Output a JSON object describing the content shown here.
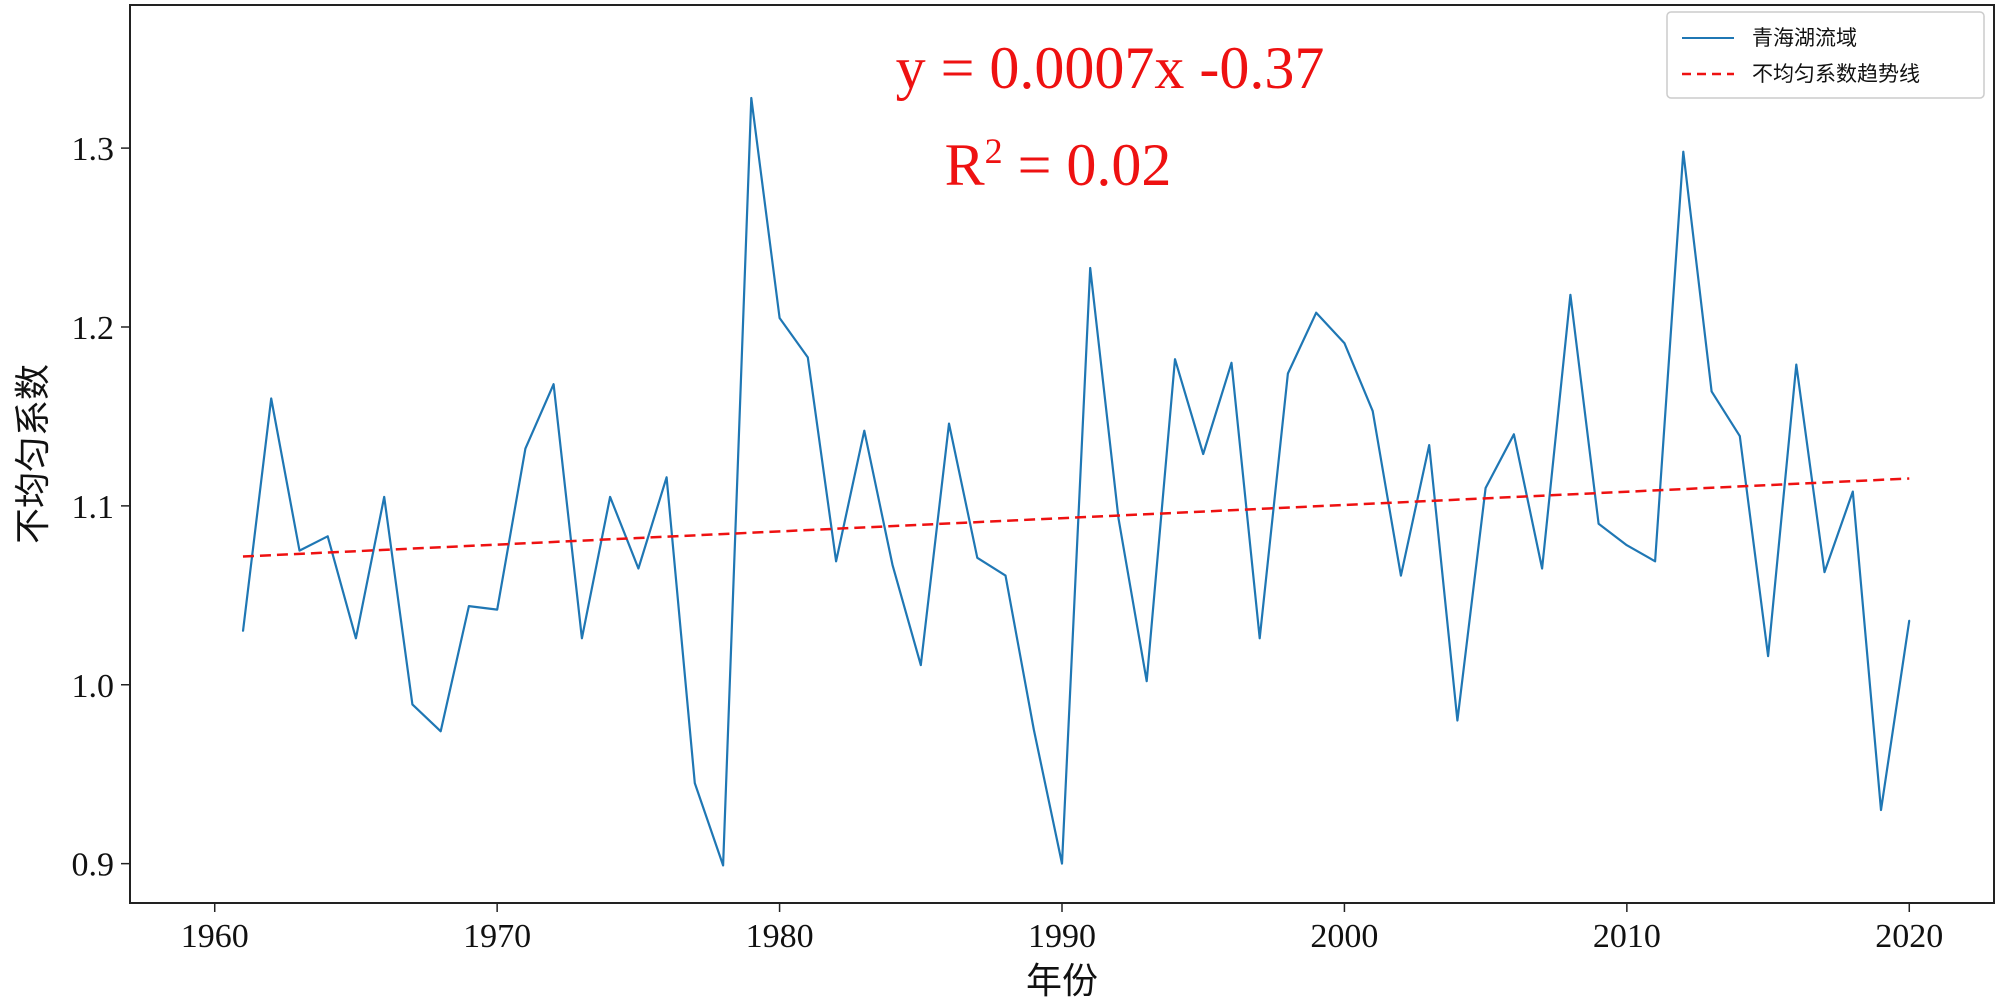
{
  "colors": {
    "series": "#1f77b4",
    "trend": "#ee1111",
    "annotation": "#ee1111",
    "axis": "#222222"
  },
  "chart_data": {
    "type": "line",
    "xlabel": "年份",
    "ylabel": "不均匀系数",
    "xlim": [
      1957.0,
      2023.0
    ],
    "ylim": [
      0.878,
      1.38
    ],
    "xticks": [
      1960,
      1970,
      1980,
      1990,
      2000,
      2010,
      2020
    ],
    "yticks": [
      0.9,
      1.0,
      1.1,
      1.2,
      1.3
    ],
    "ytick_labels": [
      "0.9",
      "1.0",
      "1.1",
      "1.2",
      "1.3"
    ],
    "grid": false,
    "legend_position": "top-right",
    "annotations": {
      "equation": "y = 0.0007x -0.37",
      "r2_prefix": "R",
      "r2_sup": "2",
      "r2_rest": " = 0.02"
    },
    "series": [
      {
        "name": "青海湖流域",
        "style": "solid",
        "x": [
          1961,
          1962,
          1963,
          1964,
          1965,
          1966,
          1967,
          1968,
          1969,
          1970,
          1971,
          1972,
          1973,
          1974,
          1975,
          1976,
          1977,
          1978,
          1979,
          1980,
          1981,
          1982,
          1983,
          1984,
          1985,
          1986,
          1987,
          1988,
          1989,
          1990,
          1991,
          1992,
          1993,
          1994,
          1995,
          1996,
          1997,
          1998,
          1999,
          2000,
          2001,
          2002,
          2003,
          2004,
          2005,
          2006,
          2007,
          2008,
          2009,
          2010,
          2011,
          2012,
          2013,
          2014,
          2015,
          2016,
          2017,
          2018,
          2019,
          2020
        ],
        "y": [
          1.03,
          1.16,
          1.075,
          1.083,
          1.026,
          1.105,
          0.989,
          0.974,
          1.044,
          1.042,
          1.132,
          1.168,
          1.026,
          1.105,
          1.065,
          1.116,
          0.945,
          0.899,
          1.328,
          1.205,
          1.183,
          1.069,
          1.142,
          1.067,
          1.011,
          1.146,
          1.071,
          1.061,
          0.975,
          0.9,
          1.233,
          1.093,
          1.002,
          1.182,
          1.129,
          1.18,
          1.026,
          1.174,
          1.208,
          1.191,
          1.153,
          1.061,
          1.134,
          0.98,
          1.11,
          1.14,
          1.065,
          1.218,
          1.09,
          1.078,
          1.069,
          1.298,
          1.164,
          1.139,
          1.016,
          1.179,
          1.063,
          1.108,
          0.93,
          1.036
        ]
      },
      {
        "name": "不均匀系数趋势线",
        "style": "dashed",
        "x": [
          1961,
          2020
        ],
        "y": [
          1.0717,
          1.1153
        ]
      }
    ]
  }
}
